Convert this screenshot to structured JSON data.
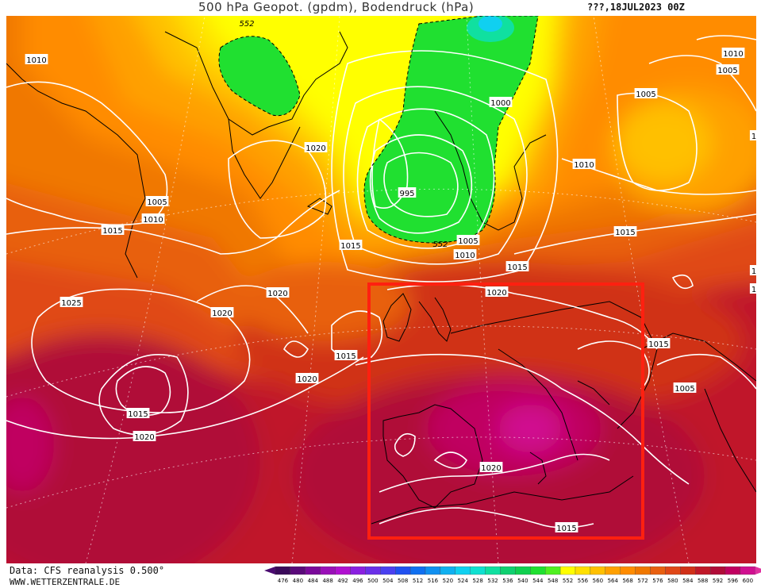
{
  "title": "500 hPa Geopot. (gpdm), Bodendruck (hPa)",
  "run": "???,18JUL2023 00Z",
  "footer": {
    "data_source": "Data: CFS reanalysis 0.500°",
    "website": "WWW.WETTERZENTRALE.DE"
  },
  "isobar_labels": [
    {
      "id": "iso-1010-nw",
      "text": "1010"
    },
    {
      "id": "iso-1020-greenland",
      "text": "1020"
    },
    {
      "id": "iso-1005-w",
      "text": "1005"
    },
    {
      "id": "iso-1010-w",
      "text": "1010"
    },
    {
      "id": "iso-1015-w",
      "text": "1015"
    },
    {
      "id": "iso-1015-north-sea",
      "text": "1015"
    },
    {
      "id": "iso-1020-mid",
      "text": "1020"
    },
    {
      "id": "iso-1025-atl",
      "text": "1025"
    },
    {
      "id": "iso-1020-atl",
      "text": "1020"
    },
    {
      "id": "iso-1015-biscay",
      "text": "1015"
    },
    {
      "id": "iso-1020-azores-e",
      "text": "1020"
    },
    {
      "id": "iso-1015-azores",
      "text": "1015"
    },
    {
      "id": "iso-1020-azores-s",
      "text": "1020"
    },
    {
      "id": "iso-995-scandinavia",
      "text": "995"
    },
    {
      "id": "iso-1000-scandinavia",
      "text": "1000"
    },
    {
      "id": "iso-1005-scandinavia",
      "text": "1005"
    },
    {
      "id": "iso-1010-scandinavia",
      "text": "1010"
    },
    {
      "id": "iso-1015-baltic",
      "text": "1015"
    },
    {
      "id": "iso-1020-channel",
      "text": "1020"
    },
    {
      "id": "iso-1010-russia",
      "text": "1010"
    },
    {
      "id": "iso-1015-russia",
      "text": "1015"
    },
    {
      "id": "iso-1005-ne",
      "text": "1005"
    },
    {
      "id": "iso-1010-ne",
      "text": "1010"
    },
    {
      "id": "iso-1005-ne2",
      "text": "1005"
    },
    {
      "id": "iso-1015-balkans",
      "text": "1015"
    },
    {
      "id": "iso-1005-turkey",
      "text": "1005"
    },
    {
      "id": "iso-1020-med",
      "text": "1020"
    },
    {
      "id": "iso-1015-nafrica",
      "text": "1015"
    },
    {
      "id": "iso-1-e1",
      "text": "1"
    },
    {
      "id": "iso-1-e2",
      "text": "1"
    },
    {
      "id": "iso-1-e3",
      "text": "1"
    }
  ],
  "geopot_labels": [
    {
      "id": "gp-552-greenland",
      "text": "552"
    },
    {
      "id": "gp-552-scandinavia",
      "text": "552"
    }
  ],
  "color_scale": {
    "values": [
      "476",
      "480",
      "484",
      "488",
      "492",
      "496",
      "500",
      "504",
      "508",
      "512",
      "516",
      "520",
      "524",
      "528",
      "532",
      "536",
      "540",
      "544",
      "548",
      "552",
      "556",
      "560",
      "564",
      "568",
      "572",
      "576",
      "580",
      "584",
      "588",
      "592",
      "596",
      "600"
    ],
    "colors": [
      "#3a0a5a",
      "#5a0a7a",
      "#7a0a9a",
      "#9a10b8",
      "#b010d0",
      "#8a20e0",
      "#6a30e8",
      "#4a40f0",
      "#2050f0",
      "#1070f0",
      "#1090f0",
      "#10b0f0",
      "#10d0f0",
      "#10e0d0",
      "#10e0a0",
      "#10d070",
      "#10d050",
      "#20e030",
      "#50f020",
      "#ffff00",
      "#ffe000",
      "#ffc000",
      "#ffa000",
      "#ff8c00",
      "#f07800",
      "#e86010",
      "#e04818",
      "#d03018",
      "#c01828",
      "#b00c38",
      "#c00060",
      "#d01090"
    ],
    "low_arrow_color": "#4a0a70",
    "high_arrow_color": "#e030a0"
  },
  "highlight_box_color": "#ff2010"
}
